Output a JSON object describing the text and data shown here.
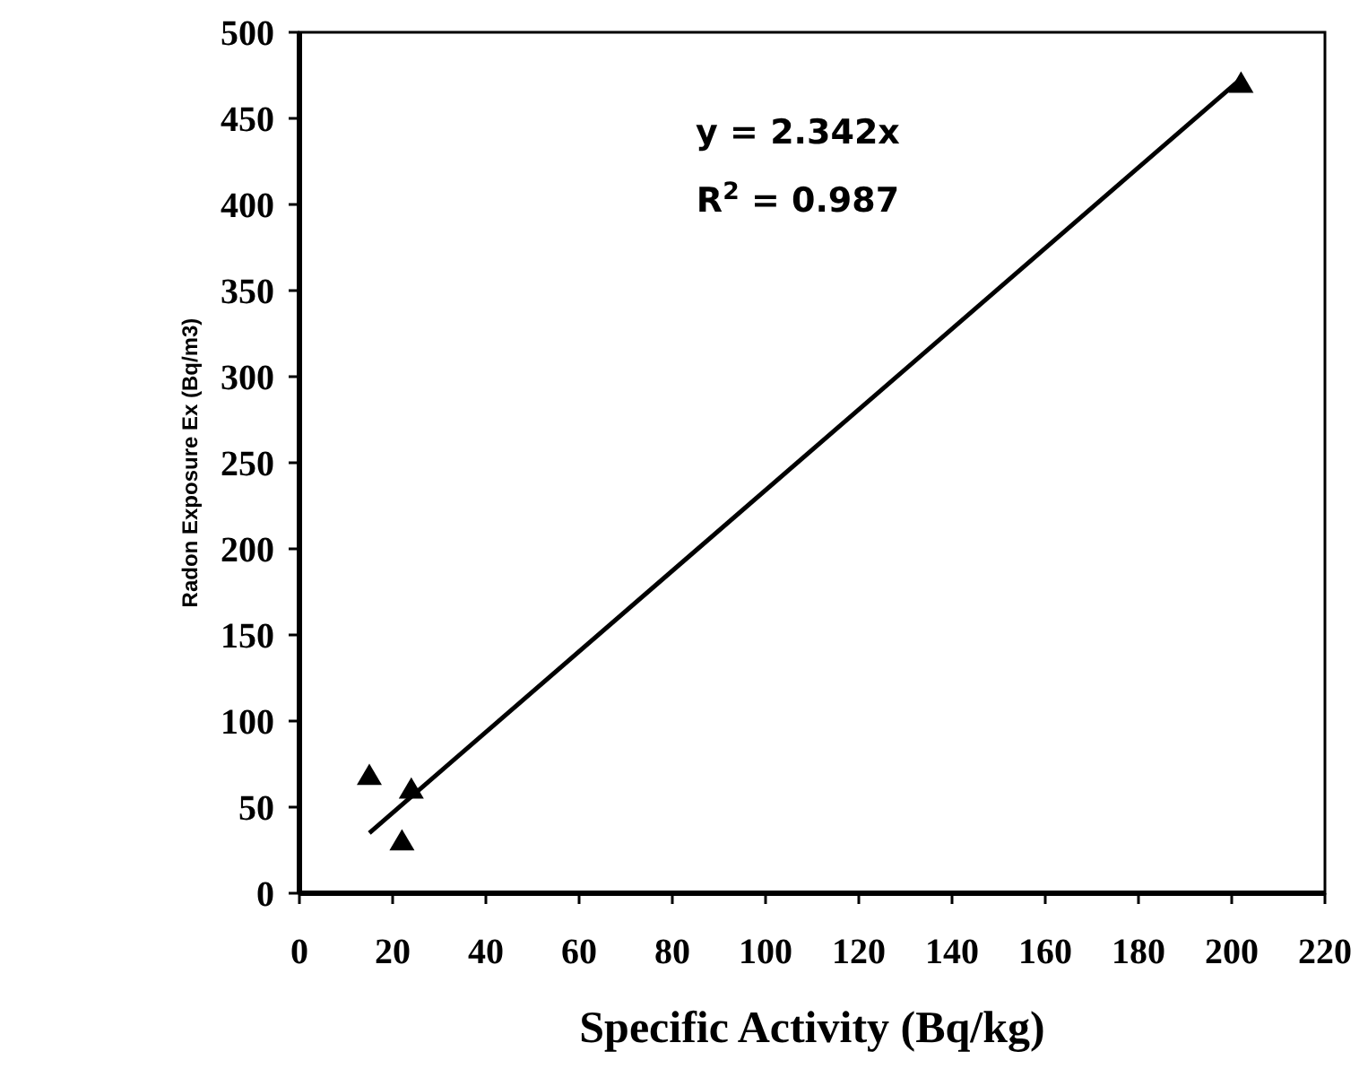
{
  "chart_data": {
    "type": "scatter",
    "xlabel": "Specific Activity (Bq/kg)",
    "ylabel": "Radon Exposure Ex (Bq/m3)",
    "xlim": [
      0,
      220
    ],
    "xticks": [
      0,
      20,
      40,
      60,
      80,
      100,
      120,
      140,
      160,
      180,
      200,
      220
    ],
    "ylim": [
      0,
      500
    ],
    "yticks": [
      0,
      50,
      100,
      150,
      200,
      250,
      300,
      350,
      400,
      450,
      500
    ],
    "grid": false,
    "marker": "triangle",
    "series": [
      {
        "color": "#000000",
        "x": [
          15,
          22,
          24,
          202
        ],
        "values": [
          68,
          30,
          60,
          470
        ]
      },
      {
        "type": "line",
        "color": "#000000",
        "x": [
          15,
          202
        ],
        "values": [
          35,
          473
        ],
        "marker": "none",
        "line_style": "solid"
      }
    ],
    "annotations": [
      "y = 2.342x",
      "R$^{2}$ = 0.987"
    ]
  }
}
